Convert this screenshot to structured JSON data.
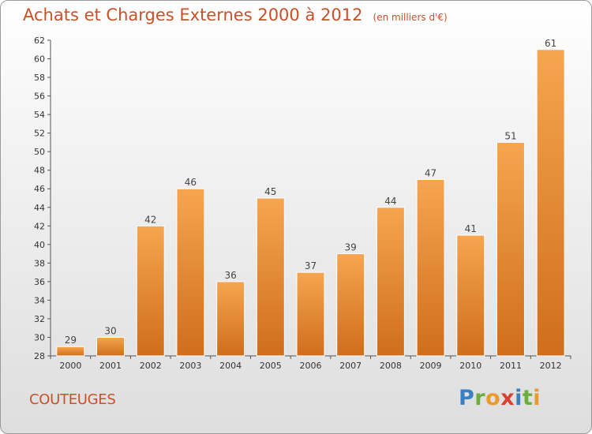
{
  "title": "Achats et Charges Externes 2000 à 2012",
  "unit": "(en milliers d'€)",
  "commune": "COUTEUGES",
  "brand": "Proxiti",
  "colors": {
    "bar_top": "#f6a550",
    "bar_bottom": "#cf6e1c",
    "title": "#c8512a",
    "brand_letters": [
      "#3a7fc1",
      "#6cae3e",
      "#e89a2a",
      "#d8412f",
      "#3a7fc1",
      "#6cae3e",
      "#e89a2a"
    ]
  },
  "chart_data": {
    "type": "bar",
    "categories": [
      "2000",
      "2001",
      "2002",
      "2003",
      "2004",
      "2005",
      "2006",
      "2007",
      "2008",
      "2009",
      "2010",
      "2011",
      "2012"
    ],
    "values": [
      29,
      30,
      42,
      46,
      36,
      45,
      37,
      39,
      44,
      47,
      41,
      51,
      61
    ],
    "ylim": [
      28,
      62
    ],
    "yticks": [
      28,
      30,
      32,
      34,
      36,
      38,
      40,
      42,
      44,
      46,
      48,
      50,
      52,
      54,
      56,
      58,
      60,
      62
    ],
    "grid": false,
    "data_labels": true
  }
}
